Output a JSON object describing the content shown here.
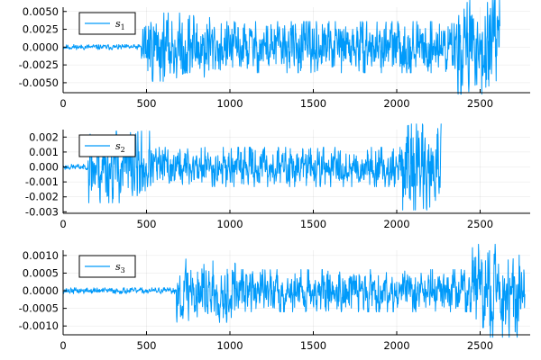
{
  "chart_data": [
    {
      "type": "line",
      "series": [
        {
          "name_base": "s",
          "name_sub": "1",
          "color": "#009AFA",
          "length": 2620,
          "segments": [
            {
              "from": 0,
              "to": 470,
              "amp": 0.0003
            },
            {
              "from": 470,
              "to": 900,
              "amp": 0.004
            },
            {
              "from": 900,
              "to": 2350,
              "amp": 0.003
            },
            {
              "from": 2350,
              "to": 2620,
              "amp": 0.0055
            }
          ],
          "seed": 11
        }
      ],
      "xlim": [
        0,
        2800
      ],
      "ylim": [
        -0.0064,
        0.0056
      ],
      "xticks": [
        0,
        500,
        1000,
        1500,
        2000,
        2500
      ],
      "xtick_labels": [
        "0",
        "500",
        "1000",
        "1500",
        "2000",
        "2500"
      ],
      "yticks": [
        -0.005,
        -0.0025,
        0,
        0.0025,
        0.005
      ],
      "ytick_labels": [
        "-0.0050",
        "-0.0025",
        "0.0000",
        "0.0025",
        "0.0050"
      ],
      "grid": true,
      "legend_position": "top-left"
    },
    {
      "type": "line",
      "series": [
        {
          "name_base": "s",
          "name_sub": "2",
          "color": "#009AFA",
          "length": 2270,
          "segments": [
            {
              "from": 0,
              "to": 150,
              "amp": 0.00015
            },
            {
              "from": 150,
              "to": 520,
              "amp": 0.002
            },
            {
              "from": 520,
              "to": 2030,
              "amp": 0.0011
            },
            {
              "from": 2030,
              "to": 2270,
              "amp": 0.0024
            }
          ],
          "seed": 23
        }
      ],
      "xlim": [
        0,
        2800
      ],
      "ylim": [
        -0.0031,
        0.0025
      ],
      "xticks": [
        0,
        500,
        1000,
        1500,
        2000,
        2500
      ],
      "xtick_labels": [
        "0",
        "500",
        "1000",
        "1500",
        "2000",
        "2500"
      ],
      "yticks": [
        -0.003,
        -0.002,
        -0.001,
        0,
        0.001,
        0.002
      ],
      "ytick_labels": [
        "-0.003",
        "-0.002",
        "-0.001",
        "0.000",
        "0.001",
        "0.002"
      ],
      "grid": true,
      "legend_position": "top-left"
    },
    {
      "type": "line",
      "series": [
        {
          "name_base": "s",
          "name_sub": "3",
          "color": "#009AFA",
          "length": 2770,
          "segments": [
            {
              "from": 0,
              "to": 680,
              "amp": 7e-05
            },
            {
              "from": 680,
              "to": 1050,
              "amp": 0.00075
            },
            {
              "from": 1050,
              "to": 2450,
              "amp": 0.0005
            },
            {
              "from": 2450,
              "to": 2770,
              "amp": 0.0011
            }
          ],
          "seed": 37
        }
      ],
      "xlim": [
        0,
        2800
      ],
      "ylim": [
        -0.00125,
        0.00115
      ],
      "xticks": [
        0,
        500,
        1000,
        1500,
        2000,
        2500
      ],
      "xtick_labels": [
        "0",
        "500",
        "1000",
        "1500",
        "2000",
        "2500"
      ],
      "yticks": [
        -0.001,
        -0.0005,
        0,
        0.0005,
        0.001
      ],
      "ytick_labels": [
        "-0.0010",
        "-0.0005",
        "0.0000",
        "0.0005",
        "0.0010"
      ],
      "grid": true,
      "legend_position": "top-left"
    }
  ]
}
